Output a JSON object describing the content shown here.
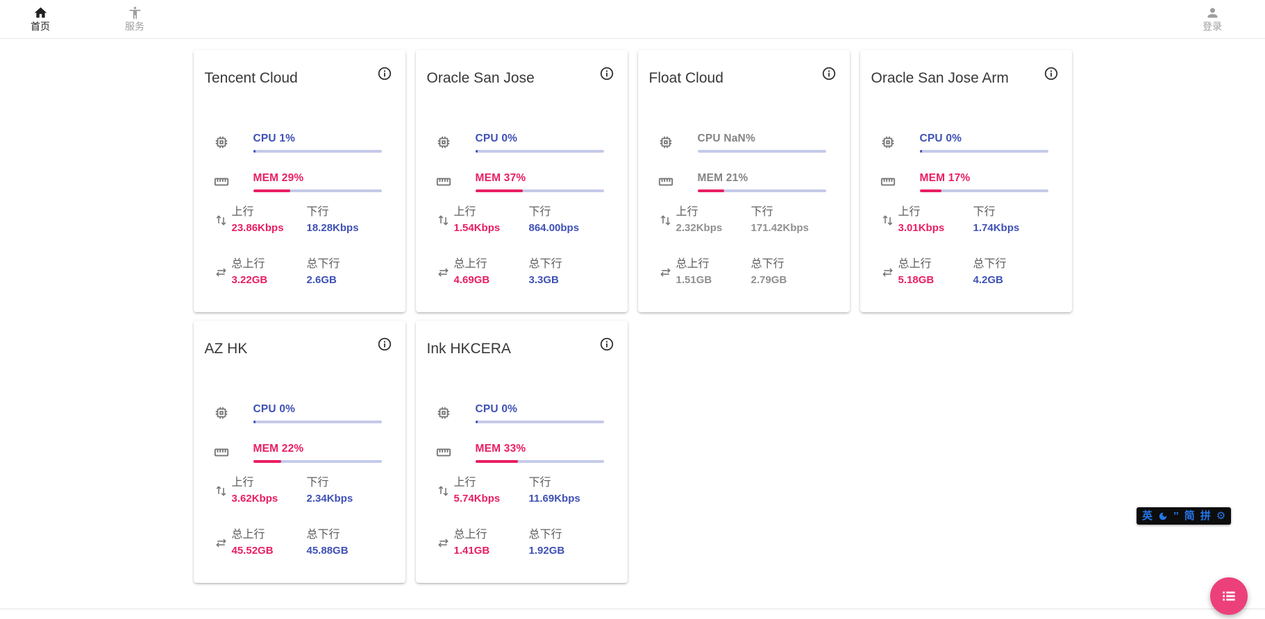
{
  "nav": {
    "home_label": "首页",
    "services_label": "服务",
    "login_label": "登录"
  },
  "labels": {
    "up": "上行",
    "down": "下行",
    "total_up": "总上行",
    "total_down": "总下行"
  },
  "servers": [
    {
      "name": "Tencent Cloud",
      "cpu_text": "CPU 1%",
      "cpu_pct": 1,
      "mem_text": "MEM 29%",
      "mem_pct": 29,
      "up": "23.86Kbps",
      "down": "18.28Kbps",
      "total_up": "3.22GB",
      "total_down": "2.6GB",
      "offline": false
    },
    {
      "name": "Oracle San Jose",
      "cpu_text": "CPU 0%",
      "cpu_pct": 0,
      "mem_text": "MEM 37%",
      "mem_pct": 37,
      "up": "1.54Kbps",
      "down": "864.00bps",
      "total_up": "4.69GB",
      "total_down": "3.3GB",
      "offline": false
    },
    {
      "name": "Float Cloud",
      "cpu_text": "CPU NaN%",
      "cpu_pct": null,
      "mem_text": "MEM 21%",
      "mem_pct": 21,
      "up": "2.32Kbps",
      "down": "171.42Kbps",
      "total_up": "1.51GB",
      "total_down": "2.79GB",
      "offline": true
    },
    {
      "name": "Oracle San Jose Arm",
      "cpu_text": "CPU 0%",
      "cpu_pct": 0,
      "mem_text": "MEM 17%",
      "mem_pct": 17,
      "up": "3.01Kbps",
      "down": "1.74Kbps",
      "total_up": "5.18GB",
      "total_down": "4.2GB",
      "offline": false
    },
    {
      "name": "AZ HK",
      "cpu_text": "CPU 0%",
      "cpu_pct": 0,
      "mem_text": "MEM 22%",
      "mem_pct": 22,
      "up": "3.62Kbps",
      "down": "2.34Kbps",
      "total_up": "45.52GB",
      "total_down": "45.88GB",
      "offline": false
    },
    {
      "name": "Ink HKCERA",
      "cpu_text": "CPU 0%",
      "cpu_pct": 0,
      "mem_text": "MEM 33%",
      "mem_pct": 33,
      "up": "5.74Kbps",
      "down": "11.69Kbps",
      "total_up": "1.41GB",
      "total_down": "1.92GB",
      "offline": false
    }
  ],
  "ime": {
    "english": "英",
    "punct": "’’",
    "simplified": "简",
    "pinyin": "拼",
    "gear_glyph": "⚙"
  },
  "icons": {
    "home": "house",
    "services": "accessibility-person",
    "login": "person-bust",
    "info": "i-in-circle",
    "cpu": "chip",
    "mem": "ruler",
    "net_speed": "up-down-arrows",
    "net_total": "swap-arrows",
    "ime_moon": "crescent-moon",
    "fab": "list"
  },
  "colors": {
    "accent_blue": "#3f51b5",
    "accent_pink": "#e91e63",
    "bar_track": "#c5cae9",
    "fab_pink": "#ec407a",
    "ime_blue": "#2577e8",
    "offline_grey": "#909090"
  }
}
